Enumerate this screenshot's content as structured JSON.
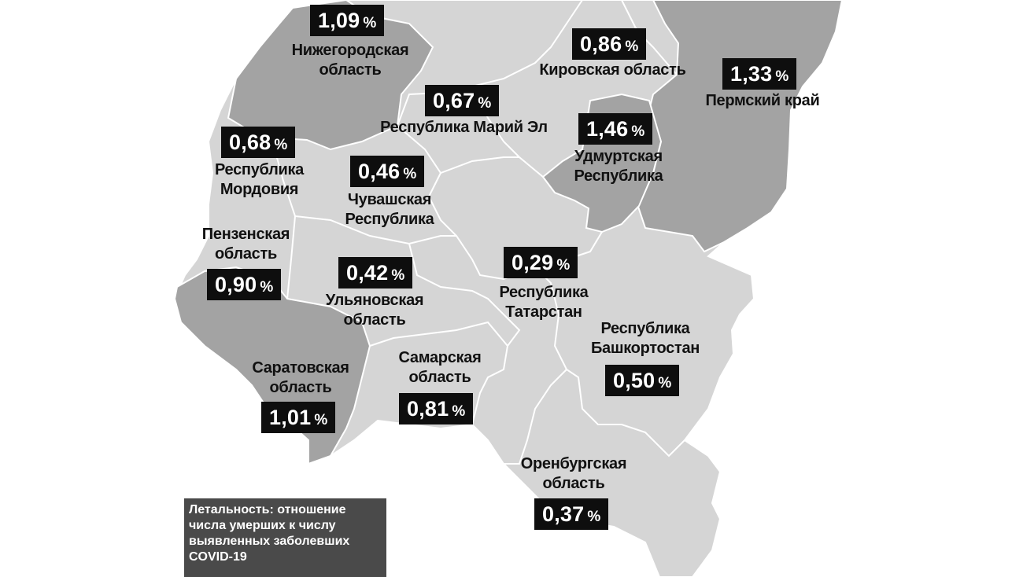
{
  "regions": {
    "nizhny": {
      "name": "Нижегородская\nобласть",
      "value": "1,09",
      "unit": "%"
    },
    "kirov": {
      "name": "Кировская область",
      "value": "0,86",
      "unit": "%"
    },
    "perm": {
      "name": "Пермский край",
      "value": "1,33",
      "unit": "%"
    },
    "mari": {
      "name": "Республика Марий Эл",
      "value": "0,67",
      "unit": "%"
    },
    "udmurt": {
      "name": "Удмуртская\nРеспублика",
      "value": "1,46",
      "unit": "%"
    },
    "mordovia": {
      "name": "Республика\nМордовия",
      "value": "0,68",
      "unit": "%"
    },
    "chuvash": {
      "name": "Чувашская\nРеспублика",
      "value": "0,46",
      "unit": "%"
    },
    "penza": {
      "name": "Пензенская\nобласть",
      "value": "0,90",
      "unit": "%"
    },
    "ulyanovsk": {
      "name": "Ульяновская\nобласть",
      "value": "0,42",
      "unit": "%"
    },
    "tatarstan": {
      "name": "Республика\nТатарстан",
      "value": "0,29",
      "unit": "%"
    },
    "bashkortostan": {
      "name": "Республика\nБашкортостан",
      "value": "0,50",
      "unit": "%"
    },
    "saratov": {
      "name": "Саратовская\nобласть",
      "value": "1,01",
      "unit": "%"
    },
    "samara": {
      "name": "Самарская\nобласть",
      "value": "0,81",
      "unit": "%"
    },
    "orenburg": {
      "name": "Оренбургская\nобласть",
      "value": "0,37",
      "unit": "%"
    }
  },
  "legend": {
    "text": "Летальность: отношение\nчисла умерших к числу\nвыявленных заболевших\nCOVID-19"
  },
  "colors": {
    "dark_region": "#a3a3a3",
    "light_region": "#d5d5d5",
    "border": "#ffffff",
    "badge": "#0e0e0e",
    "legend_bg": "#4a4a4a"
  }
}
